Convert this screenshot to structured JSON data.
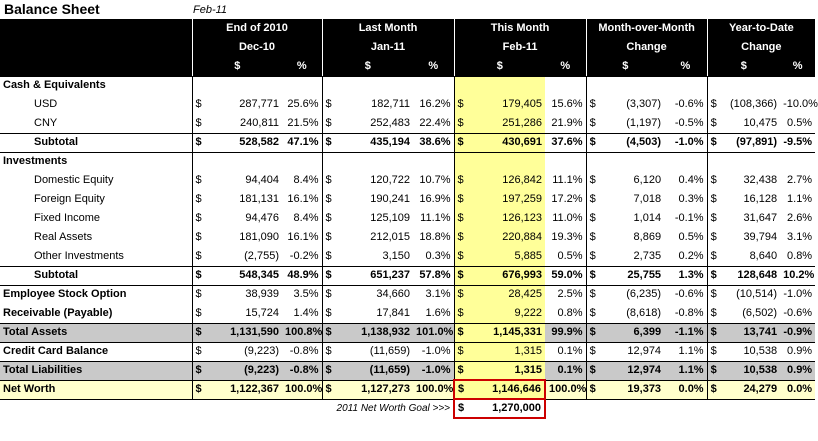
{
  "title": "Balance Sheet",
  "subtitle": "Feb-11",
  "headers": {
    "row1": [
      "End of 2010",
      "Last Month",
      "This Month",
      "Month-over-Month",
      "Year-to-Date"
    ],
    "row2": [
      "Dec-10",
      "Jan-11",
      "Feb-11",
      "Change",
      "Change"
    ],
    "dollar": "$",
    "percent": "%"
  },
  "rows": {
    "cash": {
      "label": "Cash & Equivalents"
    },
    "usd": {
      "label": "USD",
      "v": [
        "287,771",
        "25.6%",
        "182,711",
        "16.2%",
        "179,405",
        "15.6%",
        "(3,307)",
        "-0.6%",
        "(108,366)",
        "-10.0%"
      ]
    },
    "cny": {
      "label": "CNY",
      "v": [
        "240,811",
        "21.5%",
        "252,483",
        "22.4%",
        "251,286",
        "21.9%",
        "(1,197)",
        "-0.5%",
        "10,475",
        "0.5%"
      ]
    },
    "cash_sub": {
      "label": "Subtotal",
      "v": [
        "528,582",
        "47.1%",
        "435,194",
        "38.6%",
        "430,691",
        "37.6%",
        "(4,503)",
        "-1.0%",
        "(97,891)",
        "-9.5%"
      ]
    },
    "inv": {
      "label": "Investments"
    },
    "dom": {
      "label": "Domestic Equity",
      "v": [
        "94,404",
        "8.4%",
        "120,722",
        "10.7%",
        "126,842",
        "11.1%",
        "6,120",
        "0.4%",
        "32,438",
        "2.7%"
      ]
    },
    "for": {
      "label": "Foreign Equity",
      "v": [
        "181,131",
        "16.1%",
        "190,241",
        "16.9%",
        "197,259",
        "17.2%",
        "7,018",
        "0.3%",
        "16,128",
        "1.1%"
      ]
    },
    "fix": {
      "label": "Fixed Income",
      "v": [
        "94,476",
        "8.4%",
        "125,109",
        "11.1%",
        "126,123",
        "11.0%",
        "1,014",
        "-0.1%",
        "31,647",
        "2.6%"
      ]
    },
    "real": {
      "label": "Real Assets",
      "v": [
        "181,090",
        "16.1%",
        "212,015",
        "18.8%",
        "220,884",
        "19.3%",
        "8,869",
        "0.5%",
        "39,794",
        "3.1%"
      ]
    },
    "oth": {
      "label": "Other Investments",
      "v": [
        "(2,755)",
        "-0.2%",
        "3,150",
        "0.3%",
        "5,885",
        "0.5%",
        "2,735",
        "0.2%",
        "8,640",
        "0.8%"
      ]
    },
    "inv_sub": {
      "label": "Subtotal",
      "v": [
        "548,345",
        "48.9%",
        "651,237",
        "57.8%",
        "676,993",
        "59.0%",
        "25,755",
        "1.3%",
        "128,648",
        "10.2%"
      ]
    },
    "eso": {
      "label": "Employee Stock Option",
      "v": [
        "38,939",
        "3.5%",
        "34,660",
        "3.1%",
        "28,425",
        "2.5%",
        "(6,235)",
        "-0.6%",
        "(10,514)",
        "-1.0%"
      ]
    },
    "rec": {
      "label": "Receivable (Payable)",
      "v": [
        "15,724",
        "1.4%",
        "17,841",
        "1.6%",
        "9,222",
        "0.8%",
        "(8,618)",
        "-0.8%",
        "(6,502)",
        "-0.6%"
      ]
    },
    "ta": {
      "label": "Total Assets",
      "v": [
        "1,131,590",
        "100.8%",
        "1,138,932",
        "101.0%",
        "1,145,331",
        "99.9%",
        "6,399",
        "-1.1%",
        "13,741",
        "-0.9%"
      ]
    },
    "cc": {
      "label": "Credit Card Balance",
      "v": [
        "(9,223)",
        "-0.8%",
        "(11,659)",
        "-1.0%",
        "1,315",
        "0.1%",
        "12,974",
        "1.1%",
        "10,538",
        "0.9%"
      ]
    },
    "tl": {
      "label": "Total Liabilities",
      "v": [
        "(9,223)",
        "-0.8%",
        "(11,659)",
        "-1.0%",
        "1,315",
        "0.1%",
        "12,974",
        "1.1%",
        "10,538",
        "0.9%"
      ]
    },
    "nw": {
      "label": "Net Worth",
      "v": [
        "1,122,367",
        "100.0%",
        "1,127,273",
        "100.0%",
        "1,146,646",
        "100.0%",
        "19,373",
        "0.0%",
        "24,279",
        "0.0%"
      ]
    }
  },
  "goal": {
    "label": "2011 Net Worth Goal >>>",
    "value": "1,270,000"
  },
  "colors": {
    "highlight_column": "#ffff99",
    "negative_flag": "#ffc7ce",
    "positive_flag": "#c6efce",
    "total_gray": "#c9c9c9",
    "net_worth_row": "#ffffcc"
  }
}
